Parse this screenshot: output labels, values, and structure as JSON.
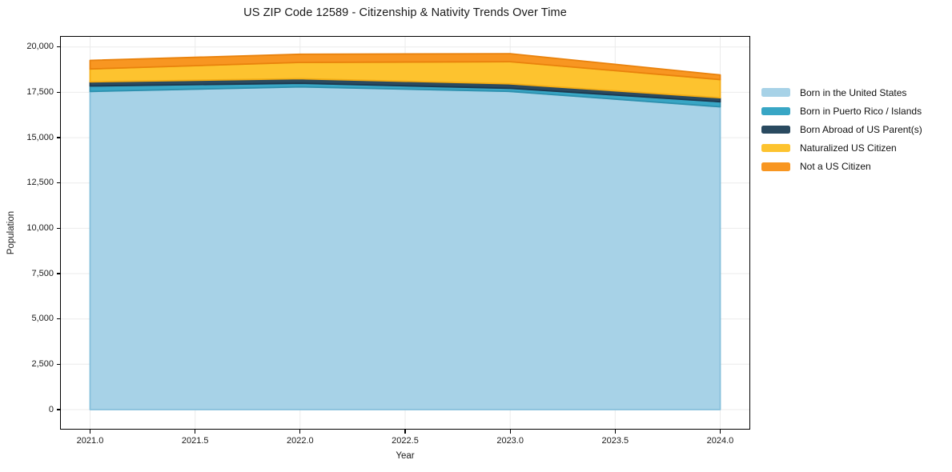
{
  "title": "US ZIP Code 12589 - Citizenship & Nativity Trends Over Time",
  "chart_data": {
    "type": "area",
    "stacked": true,
    "title": "US ZIP Code 12589 - Citizenship & Nativity Trends Over Time",
    "xlabel": "Year",
    "ylabel": "Population",
    "x": [
      2021,
      2022,
      2023,
      2024
    ],
    "series": [
      {
        "name": "Born in the United States",
        "color": "#a7d2e7",
        "edge": "#86c0db",
        "values": [
          17550,
          17800,
          17550,
          16700
        ]
      },
      {
        "name": "Born in Puerto Rico / Islands",
        "color": "#38a6c5",
        "edge": "#2d90ae",
        "values": [
          300,
          200,
          170,
          280
        ]
      },
      {
        "name": "Born Abroad of US Parent(s)",
        "color": "#2a4a60",
        "edge": "#1c384e",
        "values": [
          230,
          250,
          250,
          220
        ]
      },
      {
        "name": "Naturalized US Citizen",
        "color": "#fdc32f",
        "edge": "#f4ad14",
        "values": [
          710,
          900,
          1220,
          1000
        ]
      },
      {
        "name": "Not a US Citizen",
        "color": "#f89621",
        "edge": "#e9820c",
        "values": [
          470,
          450,
          440,
          260
        ]
      }
    ],
    "totals": [
      19260,
      19600,
      19630,
      18460
    ],
    "xlim": [
      2020.857,
      2024.143
    ],
    "ylim": [
      -1103,
      20607
    ],
    "xticks": {
      "values": [
        2021.0,
        2021.5,
        2022.0,
        2022.5,
        2023.0,
        2023.5,
        2024.0
      ],
      "labels": [
        "2021.0",
        "2021.5",
        "2022.0",
        "2022.5",
        "2023.0",
        "2023.5",
        "2024.0"
      ]
    },
    "yticks": {
      "values": [
        0,
        2500,
        5000,
        7500,
        10000,
        12500,
        15000,
        17500,
        20000
      ],
      "labels": [
        "0",
        "2,500",
        "5,000",
        "7,500",
        "10,000",
        "12,500",
        "15,000",
        "17,500",
        "20,000"
      ]
    },
    "grid": true,
    "legend_position": "right-outside",
    "background": "#ffffff"
  }
}
